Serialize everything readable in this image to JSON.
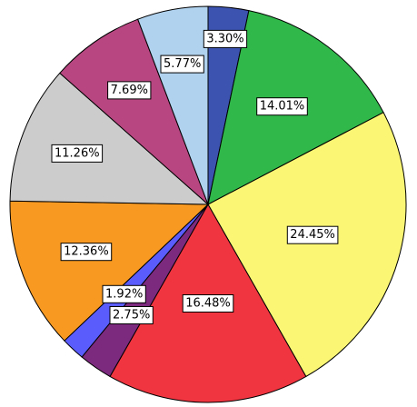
{
  "chart_data": {
    "type": "pie",
    "start": "12 o'clock",
    "direction": "clockwise",
    "slices": [
      {
        "label": "3.30%",
        "value": 3.3,
        "color": "#3d53b0"
      },
      {
        "label": "14.01%",
        "value": 14.01,
        "color": "#30b84a"
      },
      {
        "label": "24.45%",
        "value": 24.45,
        "color": "#fbf774"
      },
      {
        "label": "16.48%",
        "value": 16.48,
        "color": "#f03540"
      },
      {
        "label": "2.75%",
        "value": 2.75,
        "color": "#7c2a7e"
      },
      {
        "label": "1.92%",
        "value": 1.92,
        "color": "#5a5cfc"
      },
      {
        "label": "12.36%",
        "value": 12.36,
        "color": "#f89a22"
      },
      {
        "label": "11.26%",
        "value": 11.26,
        "color": "#cccccc"
      },
      {
        "label": "7.69%",
        "value": 7.69,
        "color": "#b84680"
      },
      {
        "label": "5.77%",
        "value": 5.77,
        "color": "#b0d2ee"
      }
    ]
  }
}
